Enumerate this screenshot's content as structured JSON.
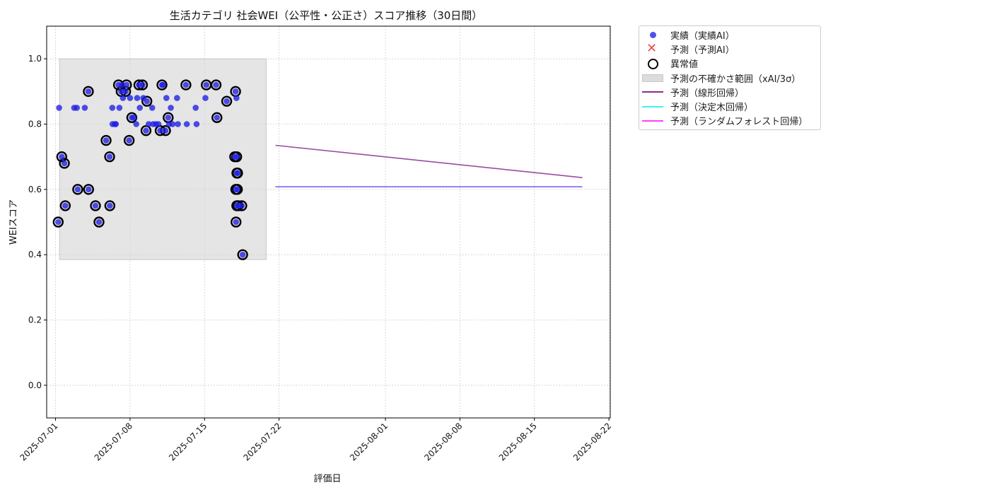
{
  "chart_data": {
    "type": "scatter",
    "title": "生活カテゴリ 社会WEI（公平性・公正さ）スコア推移（30日間）",
    "xlabel": "評価日",
    "ylabel": "WEIスコア",
    "xlim": [
      "2025-06-30T04:00",
      "2025-08-22T03:00"
    ],
    "ylim": [
      -0.1,
      1.1
    ],
    "y_ticks": [
      "0.0",
      "0.2",
      "0.4",
      "0.6",
      "0.8",
      "1.0"
    ],
    "x_ticks": [
      "2025-07-01",
      "2025-07-08",
      "2025-07-15",
      "2025-07-22",
      "2025-08-01",
      "2025-08-08",
      "2025-08-15",
      "2025-08-22"
    ],
    "grid": true,
    "legend_placement": "outside-upper-right",
    "colors": {
      "actual": "#1e1ee6",
      "predicted_ai": "#f04a4a",
      "anomaly": "#000000",
      "uncertainty": "#dcdcdc",
      "linear": "#8b2c8f",
      "tree": "#3ff0f0",
      "forest": "#ff40ff",
      "tree_forest_overlap": "#7f6bff"
    },
    "uncertainty_band": {
      "x": [
        "2025-07-01T09:00",
        "2025-07-20T19:00"
      ],
      "y": [
        0.385,
        1.0
      ]
    },
    "series": [
      {
        "name": "実績（実績AI）",
        "kind": "scatter",
        "points": [
          [
            "2025-07-01T06:00",
            0.5
          ],
          [
            "2025-07-01T08:00",
            0.85
          ],
          [
            "2025-07-01T14:00",
            0.7
          ],
          [
            "2025-07-01T20:00",
            0.68
          ],
          [
            "2025-07-01T22:00",
            0.55
          ],
          [
            "2025-07-02T18:00",
            0.85
          ],
          [
            "2025-07-03T00:00",
            0.85
          ],
          [
            "2025-07-03T02:00",
            0.6
          ],
          [
            "2025-07-03T18:00",
            0.85
          ],
          [
            "2025-07-04T02:00",
            0.9
          ],
          [
            "2025-07-04T02:30",
            0.6
          ],
          [
            "2025-07-04T18:00",
            0.55
          ],
          [
            "2025-07-05T02:00",
            0.5
          ],
          [
            "2025-07-05T18:00",
            0.75
          ],
          [
            "2025-07-06T02:00",
            0.7
          ],
          [
            "2025-07-06T02:30",
            0.55
          ],
          [
            "2025-07-06T08:00",
            0.85
          ],
          [
            "2025-07-06T08:30",
            0.8
          ],
          [
            "2025-07-06T14:00",
            0.8
          ],
          [
            "2025-07-06T16:00",
            0.8
          ],
          [
            "2025-07-06T22:00",
            0.92
          ],
          [
            "2025-07-07T00:00",
            0.85
          ],
          [
            "2025-07-07T04:00",
            0.9
          ],
          [
            "2025-07-07T06:00",
            0.92
          ],
          [
            "2025-07-07T08:00",
            0.88
          ],
          [
            "2025-07-07T14:00",
            0.9
          ],
          [
            "2025-07-07T16:00",
            0.92
          ],
          [
            "2025-07-07T22:00",
            0.75
          ],
          [
            "2025-07-08T00:00",
            0.88
          ],
          [
            "2025-07-08T04:00",
            0.82
          ],
          [
            "2025-07-08T08:00",
            0.82
          ],
          [
            "2025-07-08T14:00",
            0.8
          ],
          [
            "2025-07-08T16:00",
            0.88
          ],
          [
            "2025-07-08T20:00",
            0.92
          ],
          [
            "2025-07-08T22:00",
            0.85
          ],
          [
            "2025-07-09T04:00",
            0.92
          ],
          [
            "2025-07-09T06:00",
            0.88
          ],
          [
            "2025-07-09T12:00",
            0.78
          ],
          [
            "2025-07-09T14:00",
            0.87
          ],
          [
            "2025-07-09T18:00",
            0.8
          ],
          [
            "2025-07-10T02:00",
            0.85
          ],
          [
            "2025-07-10T04:00",
            0.8
          ],
          [
            "2025-07-10T10:00",
            0.8
          ],
          [
            "2025-07-10T16:00",
            0.8
          ],
          [
            "2025-07-10T20:00",
            0.78
          ],
          [
            "2025-07-11T00:00",
            0.92
          ],
          [
            "2025-07-11T02:00",
            0.92
          ],
          [
            "2025-07-11T08:00",
            0.78
          ],
          [
            "2025-07-11T10:00",
            0.88
          ],
          [
            "2025-07-11T14:00",
            0.82
          ],
          [
            "2025-07-11T16:00",
            0.8
          ],
          [
            "2025-07-11T20:00",
            0.85
          ],
          [
            "2025-07-12T00:00",
            0.8
          ],
          [
            "2025-07-12T10:00",
            0.88
          ],
          [
            "2025-07-12T12:00",
            0.8
          ],
          [
            "2025-07-13T06:00",
            0.92
          ],
          [
            "2025-07-13T08:00",
            0.8
          ],
          [
            "2025-07-14T04:00",
            0.85
          ],
          [
            "2025-07-14T06:00",
            0.8
          ],
          [
            "2025-07-15T02:00",
            0.88
          ],
          [
            "2025-07-15T04:00",
            0.92
          ],
          [
            "2025-07-16T02:00",
            0.92
          ],
          [
            "2025-07-16T04:00",
            0.82
          ],
          [
            "2025-07-17T02:00",
            0.87
          ],
          [
            "2025-07-17T22:00",
            0.9
          ],
          [
            "2025-07-18T00:00",
            0.88
          ],
          [
            "2025-07-17T20:00",
            0.7
          ],
          [
            "2025-07-18T00:30",
            0.7
          ],
          [
            "2025-07-18T01:00",
            0.65
          ],
          [
            "2025-07-18T02:00",
            0.6
          ],
          [
            "2025-07-17T22:30",
            0.6
          ],
          [
            "2025-07-18T00:45",
            0.55
          ],
          [
            "2025-07-18T02:30",
            0.65
          ],
          [
            "2025-07-18T04:00",
            0.55
          ],
          [
            "2025-07-17T23:00",
            0.5
          ],
          [
            "2025-07-18T12:00",
            0.55
          ],
          [
            "2025-07-18T14:00",
            0.4
          ]
        ]
      },
      {
        "name": "予測（予測AI）",
        "kind": "scatter",
        "points": []
      },
      {
        "name": "異常値",
        "kind": "marker",
        "points": [
          [
            "2025-07-01T06:00",
            0.5
          ],
          [
            "2025-07-01T14:00",
            0.7
          ],
          [
            "2025-07-01T20:00",
            0.68
          ],
          [
            "2025-07-01T22:00",
            0.55
          ],
          [
            "2025-07-03T02:00",
            0.6
          ],
          [
            "2025-07-04T02:00",
            0.9
          ],
          [
            "2025-07-04T02:30",
            0.6
          ],
          [
            "2025-07-04T18:00",
            0.55
          ],
          [
            "2025-07-05T02:00",
            0.5
          ],
          [
            "2025-07-05T18:00",
            0.75
          ],
          [
            "2025-07-06T02:00",
            0.7
          ],
          [
            "2025-07-06T02:30",
            0.55
          ],
          [
            "2025-07-06T22:00",
            0.92
          ],
          [
            "2025-07-07T04:00",
            0.9
          ],
          [
            "2025-07-07T14:00",
            0.9
          ],
          [
            "2025-07-07T16:00",
            0.92
          ],
          [
            "2025-07-07T22:00",
            0.75
          ],
          [
            "2025-07-08T04:00",
            0.82
          ],
          [
            "2025-07-08T20:00",
            0.92
          ],
          [
            "2025-07-09T04:00",
            0.92
          ],
          [
            "2025-07-09T12:00",
            0.78
          ],
          [
            "2025-07-09T14:00",
            0.87
          ],
          [
            "2025-07-11T00:00",
            0.92
          ],
          [
            "2025-07-11T08:00",
            0.78
          ],
          [
            "2025-07-10T20:00",
            0.78
          ],
          [
            "2025-07-11T14:00",
            0.82
          ],
          [
            "2025-07-13T06:00",
            0.92
          ],
          [
            "2025-07-15T04:00",
            0.92
          ],
          [
            "2025-07-16T02:00",
            0.92
          ],
          [
            "2025-07-16T04:00",
            0.82
          ],
          [
            "2025-07-17T02:00",
            0.87
          ],
          [
            "2025-07-17T22:00",
            0.9
          ],
          [
            "2025-07-17T20:00",
            0.7
          ],
          [
            "2025-07-18T00:30",
            0.7
          ],
          [
            "2025-07-18T01:00",
            0.65
          ],
          [
            "2025-07-18T02:00",
            0.6
          ],
          [
            "2025-07-17T22:30",
            0.6
          ],
          [
            "2025-07-18T00:45",
            0.55
          ],
          [
            "2025-07-18T02:30",
            0.65
          ],
          [
            "2025-07-18T04:00",
            0.55
          ],
          [
            "2025-07-17T23:00",
            0.5
          ],
          [
            "2025-07-18T12:00",
            0.55
          ],
          [
            "2025-07-18T14:00",
            0.4
          ]
        ]
      },
      {
        "name": "予測（線形回帰）",
        "kind": "line",
        "points": [
          [
            "2025-07-21T16:00",
            0.735
          ],
          [
            "2025-08-19T12:00",
            0.636
          ]
        ]
      },
      {
        "name": "予測（決定木回帰）",
        "kind": "line",
        "points": [
          [
            "2025-07-21T16:00",
            0.608
          ],
          [
            "2025-08-19T12:00",
            0.608
          ]
        ]
      },
      {
        "name": "予測（ランダムフォレスト回帰）",
        "kind": "line",
        "points": [
          [
            "2025-07-21T16:00",
            0.608
          ],
          [
            "2025-08-19T12:00",
            0.608
          ]
        ]
      }
    ],
    "legend": [
      {
        "label": "実績（実績AI）",
        "symbol": "dot"
      },
      {
        "label": "予測（予測AI）",
        "symbol": "x"
      },
      {
        "label": "異常値",
        "symbol": "ring"
      },
      {
        "label": "予測の不確かさ範囲（xAI/3σ）",
        "symbol": "patch"
      },
      {
        "label": "予測（線形回帰）",
        "symbol": "line-linear"
      },
      {
        "label": "予測（決定木回帰）",
        "symbol": "line-tree"
      },
      {
        "label": "予測（ランダムフォレスト回帰）",
        "symbol": "line-forest"
      }
    ]
  }
}
